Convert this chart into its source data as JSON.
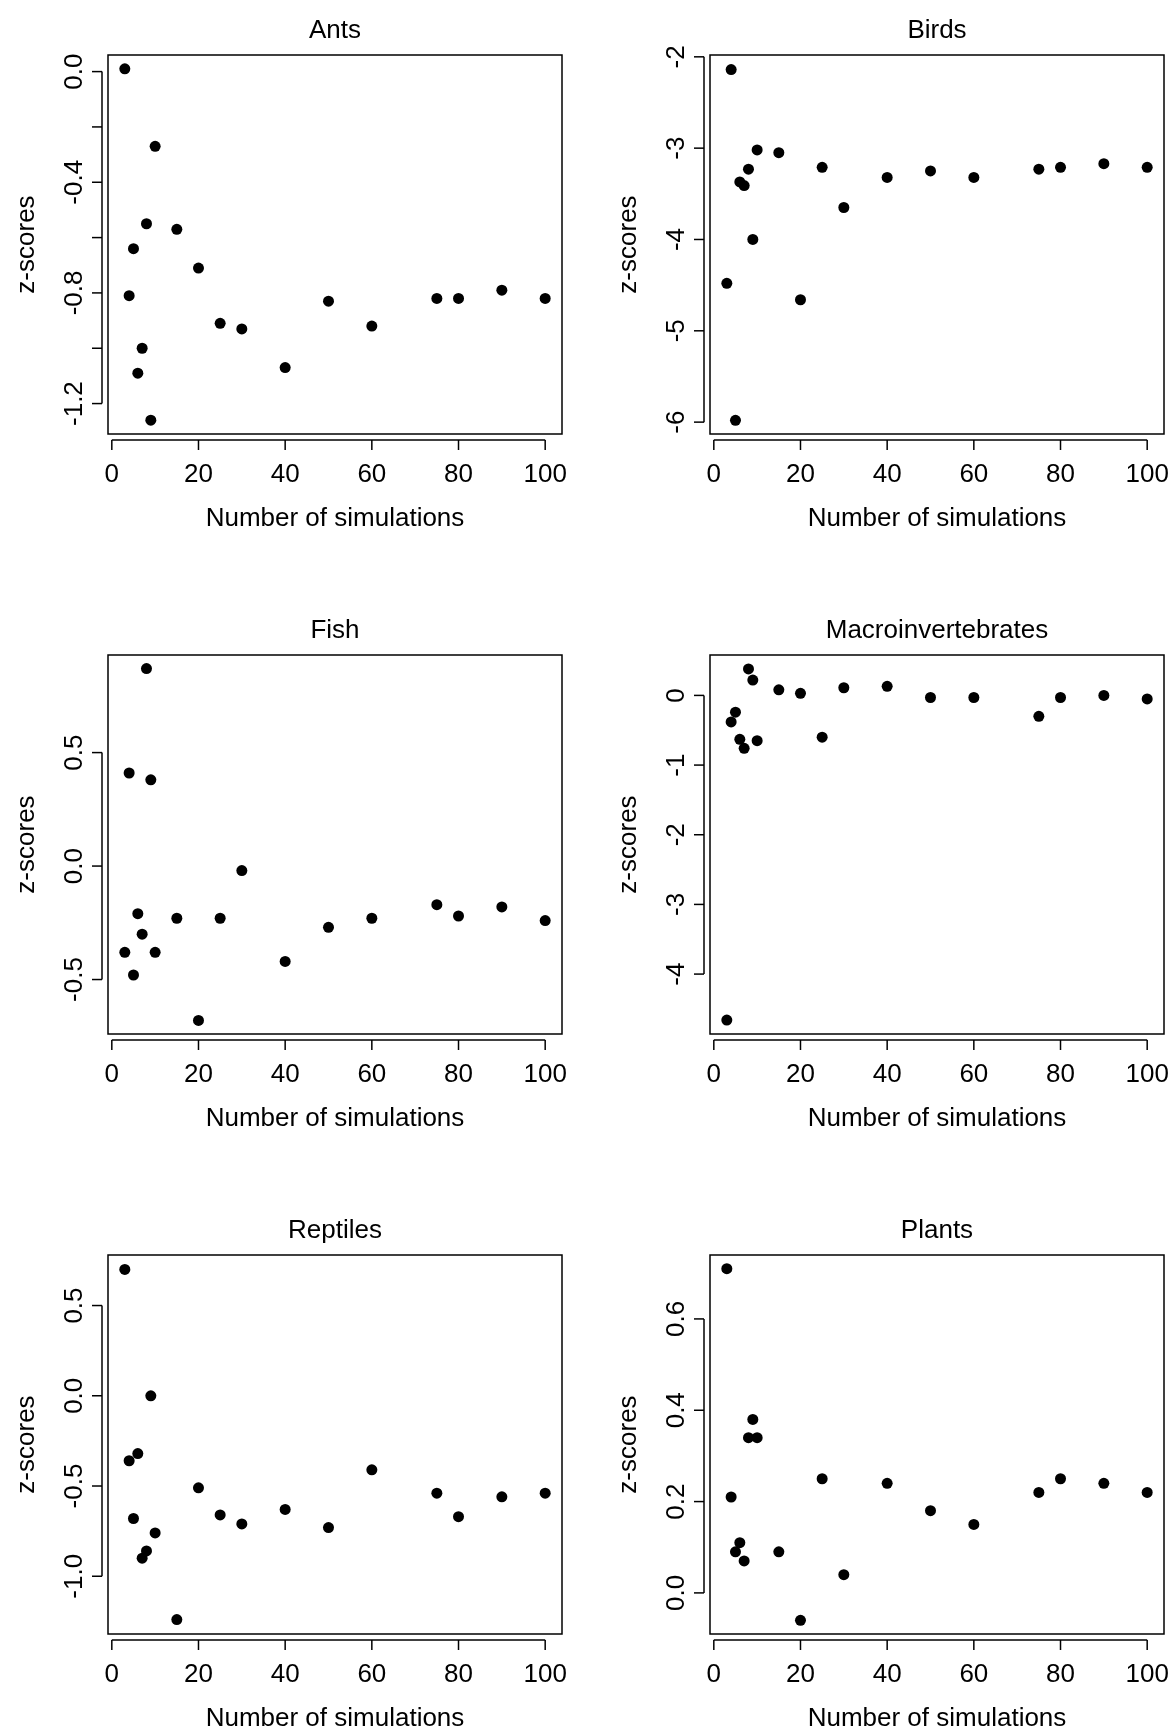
{
  "chart_data": [
    {
      "type": "scatter",
      "title": "Ants",
      "xlabel": "Number of simulations",
      "ylabel": "z-scores",
      "color": "#000000",
      "marker": "circle",
      "x": [
        3,
        4,
        5,
        6,
        7,
        8,
        9,
        10,
        15,
        20,
        25,
        30,
        40,
        50,
        60,
        75,
        80,
        90,
        100
      ],
      "values": [
        0.01,
        -0.81,
        -0.64,
        -1.09,
        -1.0,
        -0.55,
        -1.26,
        -0.27,
        -0.57,
        -0.71,
        -0.91,
        -0.93,
        -1.07,
        -0.83,
        -0.92,
        -0.82,
        -0.82,
        -0.79,
        -0.82
      ],
      "xlim": [
        -0.88,
        103.88
      ],
      "ylim": [
        -1.31,
        0.06
      ],
      "xticks": [
        0,
        20,
        40,
        60,
        80,
        100
      ],
      "yticks": [
        -1.2,
        {
          "value": -1,
          "label": null
        },
        -0.8,
        {
          "value": -0.6,
          "label": null
        },
        -0.4,
        {
          "value": -0.2,
          "label": null
        },
        {
          "value": 0,
          "label": "0.0"
        }
      ]
    },
    {
      "type": "scatter",
      "title": "Birds",
      "xlabel": "Number of simulations",
      "ylabel": "z-scores",
      "color": "#000000",
      "marker": "circle",
      "x": [
        3,
        4,
        5,
        6,
        7,
        8,
        9,
        10,
        15,
        20,
        25,
        30,
        40,
        50,
        60,
        75,
        80,
        90,
        100
      ],
      "values": [
        -4.48,
        -2.14,
        -5.98,
        -3.37,
        -3.41,
        -3.23,
        -4.0,
        -3.02,
        -3.05,
        -4.66,
        -3.21,
        -3.65,
        -3.32,
        -3.25,
        -3.32,
        -3.23,
        -3.21,
        -3.17,
        -3.21
      ],
      "xlim": [
        -0.88,
        103.88
      ],
      "ylim": [
        -6.13,
        -1.98
      ],
      "xticks": [
        0,
        20,
        40,
        60,
        80,
        100
      ],
      "yticks": [
        -6,
        -5,
        -4,
        -3,
        -2
      ]
    },
    {
      "type": "scatter",
      "title": "Fish",
      "xlabel": "Number of simulations",
      "ylabel": "z-scores",
      "color": "#000000",
      "marker": "circle",
      "x": [
        3,
        4,
        5,
        6,
        7,
        8,
        9,
        10,
        15,
        20,
        25,
        30,
        40,
        50,
        60,
        75,
        80,
        90,
        100
      ],
      "values": [
        -0.38,
        0.41,
        -0.48,
        -0.21,
        -0.3,
        0.87,
        0.38,
        -0.38,
        -0.23,
        -0.68,
        -0.23,
        -0.02,
        -0.42,
        -0.27,
        -0.23,
        -0.17,
        -0.22,
        -0.18,
        -0.24
      ],
      "xlim": [
        -0.88,
        103.88
      ],
      "ylim": [
        -0.74,
        0.93
      ],
      "xticks": [
        0,
        20,
        40,
        60,
        80,
        100
      ],
      "yticks": [
        -0.5,
        {
          "value": 0,
          "label": "0.0"
        },
        0.5
      ]
    },
    {
      "type": "scatter",
      "title": "Macroinvertebrates",
      "xlabel": "Number of simulations",
      "ylabel": "z-scores",
      "color": "#000000",
      "marker": "circle",
      "x": [
        3,
        4,
        5,
        6,
        7,
        8,
        9,
        10,
        15,
        20,
        25,
        30,
        40,
        50,
        60,
        75,
        80,
        90,
        100
      ],
      "values": [
        -4.66,
        -0.38,
        -0.24,
        -0.63,
        -0.76,
        0.38,
        0.22,
        -0.65,
        0.08,
        0.03,
        -0.6,
        0.11,
        0.13,
        -0.03,
        -0.03,
        -0.3,
        -0.03,
        0.0,
        -0.05
      ],
      "xlim": [
        -0.88,
        103.88
      ],
      "ylim": [
        -4.86,
        0.58
      ],
      "xticks": [
        0,
        20,
        40,
        60,
        80,
        100
      ],
      "yticks": [
        -4,
        -3,
        -2,
        -1,
        0
      ]
    },
    {
      "type": "scatter",
      "title": "Reptiles",
      "xlabel": "Number of simulations",
      "ylabel": "z-scores",
      "color": "#000000",
      "marker": "circle",
      "x": [
        3,
        4,
        5,
        6,
        7,
        8,
        9,
        10,
        15,
        20,
        25,
        30,
        40,
        50,
        60,
        75,
        80,
        90,
        100
      ],
      "values": [
        0.7,
        -0.36,
        -0.68,
        -0.32,
        -0.9,
        -0.86,
        0.0,
        -0.76,
        -1.24,
        -0.51,
        -0.66,
        -0.71,
        -0.63,
        -0.73,
        -0.41,
        -0.54,
        -0.67,
        -0.56,
        -0.54
      ],
      "xlim": [
        -0.88,
        103.88
      ],
      "ylim": [
        -1.32,
        0.78
      ],
      "xticks": [
        0,
        20,
        40,
        60,
        80,
        100
      ],
      "yticks": [
        {
          "value": -1,
          "label": "-1.0"
        },
        -0.5,
        {
          "value": 0,
          "label": "0.0"
        },
        0.5
      ]
    },
    {
      "type": "scatter",
      "title": "Plants",
      "xlabel": "Number of simulations",
      "ylabel": "z-scores",
      "color": "#000000",
      "marker": "circle",
      "x": [
        3,
        4,
        5,
        6,
        7,
        8,
        9,
        10,
        15,
        20,
        25,
        30,
        40,
        50,
        60,
        75,
        80,
        90,
        100
      ],
      "values": [
        0.71,
        0.21,
        0.09,
        0.11,
        0.07,
        0.34,
        0.38,
        0.34,
        0.09,
        -0.06,
        0.25,
        0.04,
        0.24,
        0.18,
        0.15,
        0.22,
        0.25,
        0.24,
        0.22
      ],
      "xlim": [
        -0.88,
        103.88
      ],
      "ylim": [
        -0.09,
        0.74
      ],
      "xticks": [
        0,
        20,
        40,
        60,
        80,
        100
      ],
      "yticks": [
        {
          "value": 0,
          "label": "0.0"
        },
        0.2,
        0.4,
        0.6
      ]
    }
  ]
}
